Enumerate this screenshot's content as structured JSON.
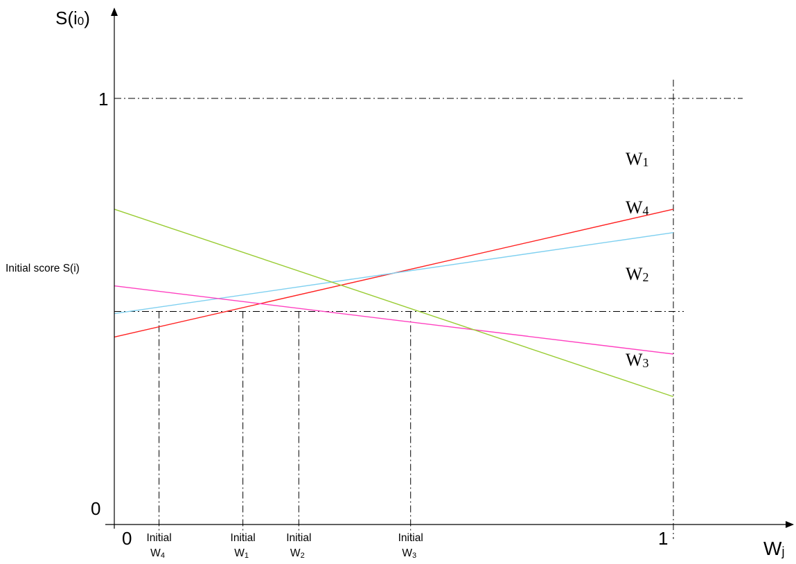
{
  "chart_data": {
    "type": "line",
    "y_axis_label": "S(i",
    "y_axis_label_sub": "0",
    "y_axis_label_close": ")",
    "x_axis_label": "W",
    "x_axis_label_sub": "j",
    "x_origin_label": "0",
    "x_one_label": "1",
    "y_zero_label": "0",
    "y_one_label": "1",
    "xlim": [
      0,
      1
    ],
    "ylim": [
      0,
      1
    ],
    "reference_lines": [
      {
        "id": "y-one-line",
        "axis": "y",
        "value": 1
      },
      {
        "id": "x-one-line",
        "axis": "x",
        "value": 1
      },
      {
        "id": "initial-score-line",
        "axis": "y",
        "value": 0.5
      }
    ],
    "initial_score": {
      "label": "Initial score S(i)",
      "value": 0.5
    },
    "series": [
      {
        "name": "W",
        "sub": "1",
        "color": "#ff2020",
        "x": [
          0,
          1
        ],
        "y": [
          0.44,
          0.74
        ]
      },
      {
        "name": "W",
        "sub": "4",
        "color": "#7fd0f0",
        "x": [
          0,
          1
        ],
        "y": [
          0.495,
          0.685
        ]
      },
      {
        "name": "W",
        "sub": "2",
        "color": "#ff40c0",
        "x": [
          0,
          1
        ],
        "y": [
          0.56,
          0.4
        ]
      },
      {
        "name": "W",
        "sub": "3",
        "color": "#99cc33",
        "x": [
          0,
          1
        ],
        "y": [
          0.74,
          0.3
        ]
      }
    ],
    "initial_weights": [
      {
        "label": "Initial",
        "weight": "W",
        "sub": "4",
        "x": 0.08
      },
      {
        "label": "Initial",
        "weight": "W",
        "sub": "1",
        "x": 0.23
      },
      {
        "label": "Initial",
        "weight": "W",
        "sub": "2",
        "x": 0.33
      },
      {
        "label": "Initial",
        "weight": "W",
        "sub": "3",
        "x": 0.53
      }
    ],
    "grid": false,
    "legend": "labels at right end of lines"
  }
}
